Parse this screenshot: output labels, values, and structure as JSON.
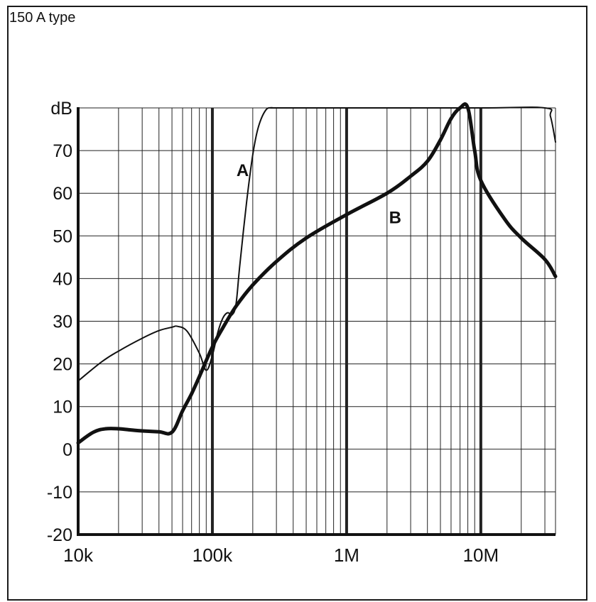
{
  "caption": "150 A type",
  "chart_data": {
    "type": "line",
    "x_scale": "log",
    "y_unit": "dB",
    "xlim": [
      10000,
      36000000
    ],
    "ylim": [
      -20,
      80
    ],
    "grid": true,
    "y_ticks": [
      -20,
      -10,
      0,
      10,
      20,
      30,
      40,
      50,
      60,
      70
    ],
    "y_tick_labels": [
      "-20",
      "-10",
      "0",
      "10",
      "20",
      "30",
      "40",
      "50",
      "60",
      "70"
    ],
    "x_ticks": [
      10000,
      100000,
      1000000,
      10000000
    ],
    "x_tick_labels": [
      "10k",
      "100k",
      "1M",
      "10M"
    ],
    "series": [
      {
        "name": "A",
        "stroke": "thin",
        "x": [
          10000,
          15000,
          20000,
          30000,
          40000,
          50000,
          55000,
          65000,
          80000,
          90000,
          100000,
          110000,
          120000,
          130000,
          140000,
          150000,
          160000,
          180000,
          200000,
          220000,
          250000,
          280000,
          300000,
          1000000,
          10000000,
          30000000,
          33000000,
          36000000
        ],
        "y": [
          16,
          20.5,
          23,
          26,
          27.8,
          28.6,
          28.8,
          27.6,
          22.5,
          18.5,
          22,
          27.5,
          30.8,
          32,
          31.5,
          34,
          43,
          58,
          69,
          75.5,
          79.5,
          80,
          80,
          80,
          80,
          80,
          78,
          72
        ]
      },
      {
        "name": "B",
        "stroke": "thick",
        "x": [
          10000,
          13000,
          16000,
          20000,
          25000,
          30000,
          40000,
          50000,
          60000,
          70000,
          80000,
          100000,
          120000,
          150000,
          200000,
          300000,
          500000,
          1000000,
          2000000,
          3000000,
          4000000,
          5000000,
          6000000,
          7000000,
          8000000,
          9000000,
          10000000,
          15000000,
          20000000,
          30000000,
          36000000
        ],
        "y": [
          1.5,
          4,
          4.8,
          4.8,
          4.5,
          4.3,
          4.1,
          4,
          9,
          13,
          17,
          24,
          28.5,
          33.5,
          38.5,
          44,
          49.5,
          55,
          60,
          64,
          67.5,
          72.5,
          77.5,
          80,
          80,
          70,
          63,
          54,
          49.5,
          44.5,
          40.5
        ]
      }
    ]
  }
}
